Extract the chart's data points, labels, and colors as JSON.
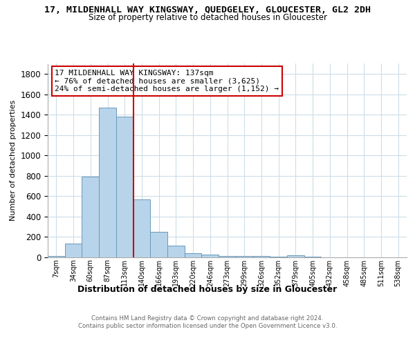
{
  "title": "17, MILDENHALL WAY KINGSWAY, QUEDGELEY, GLOUCESTER, GL2 2DH",
  "subtitle": "Size of property relative to detached houses in Gloucester",
  "xlabel": "Distribution of detached houses by size in Gloucester",
  "ylabel": "Number of detached properties",
  "bar_labels": [
    "7sqm",
    "34sqm",
    "60sqm",
    "87sqm",
    "113sqm",
    "140sqm",
    "166sqm",
    "193sqm",
    "220sqm",
    "246sqm",
    "273sqm",
    "299sqm",
    "326sqm",
    "352sqm",
    "379sqm",
    "405sqm",
    "432sqm",
    "458sqm",
    "485sqm",
    "511sqm",
    "538sqm"
  ],
  "bar_values": [
    8,
    135,
    790,
    1470,
    1380,
    570,
    245,
    115,
    35,
    22,
    10,
    10,
    8,
    5,
    15,
    3,
    0,
    0,
    0,
    0,
    0
  ],
  "bar_color": "#b8d4ea",
  "bar_edge_color": "#6699bb",
  "vline_color": "#cc0000",
  "vline_pos": 4.5,
  "annotation_text": "17 MILDENHALL WAY KINGSWAY: 137sqm\n← 76% of detached houses are smaller (3,625)\n24% of semi-detached houses are larger (1,152) →",
  "annotation_box_color": "#ffffff",
  "annotation_box_edge": "#cc0000",
  "footer_text": "Contains HM Land Registry data © Crown copyright and database right 2024.\nContains public sector information licensed under the Open Government Licence v3.0.",
  "ylim": [
    0,
    1900
  ],
  "yticks": [
    0,
    200,
    400,
    600,
    800,
    1000,
    1200,
    1400,
    1600,
    1800
  ],
  "bg_color": "#ffffff",
  "grid_color": "#ccdde8"
}
